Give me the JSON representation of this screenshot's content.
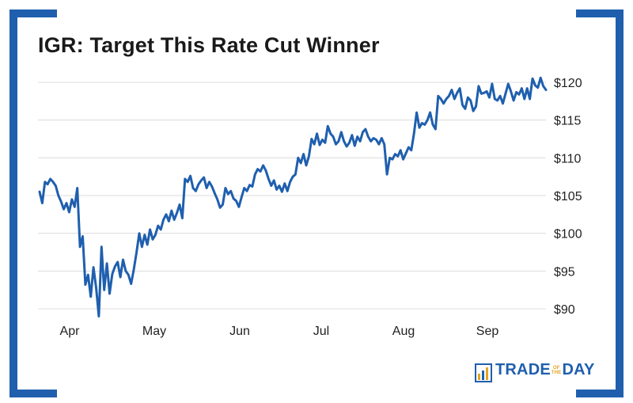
{
  "title": "IGR: Target This Rate Cut Winner",
  "brand": {
    "name_part1": "TRADE",
    "name_small_top": "OF",
    "name_small_bottom": "THE",
    "name_part2": "DAY",
    "accent_color": "#1f5fae",
    "gold_color": "#e3a326"
  },
  "chart_data": {
    "type": "line",
    "title": "IGR: Target This Rate Cut Winner",
    "xlabel": "",
    "ylabel": "",
    "ylim": [
      88,
      122
    ],
    "y_ticks": [
      120,
      115,
      110,
      105,
      100,
      95,
      90
    ],
    "y_tick_labels": [
      "$120",
      "$115",
      "$110",
      "$105",
      "$100",
      "$95",
      "$90"
    ],
    "x_tick_labels": [
      "Apr",
      "May",
      "Jun",
      "Jul",
      "Aug",
      "Sep"
    ],
    "x_tick_positions": [
      8,
      29,
      50,
      71,
      92,
      113
    ],
    "grid": true,
    "line_color": "#1f5fae",
    "series": [
      {
        "values": [
          105.5,
          104,
          106.8,
          106.5,
          107.2,
          106.8,
          106.3,
          105,
          104.2,
          103.2,
          104,
          102.8,
          104.5,
          103.5,
          106,
          98.2,
          99.6,
          93.2,
          94.5,
          91.6,
          95.5,
          92.8,
          89,
          98.2,
          92.5,
          96,
          92,
          94.6,
          95.6,
          96.2,
          94.2,
          96.5,
          95,
          94.5,
          93.3,
          95.2,
          97.5,
          100,
          98.2,
          99.8,
          98.5,
          100.5,
          99.2,
          99.8,
          101,
          100.5,
          101.8,
          102.5,
          101.6,
          103,
          101.8,
          102.7,
          103.8,
          102,
          107.2,
          106.8,
          107.6,
          106,
          105.6,
          106.5,
          107,
          107.4,
          106,
          106.8,
          106.2,
          105.3,
          104.5,
          103.4,
          103.8,
          106,
          105.2,
          105.6,
          104.6,
          104.3,
          103.5,
          104.8,
          106,
          105.6,
          106.4,
          106.2,
          107.8,
          108.5,
          108.2,
          109,
          108.3,
          107.2,
          106.3,
          107,
          105.8,
          106.3,
          105.5,
          106.6,
          105.6,
          106.8,
          107.5,
          107.8,
          110,
          109.3,
          110.5,
          109,
          110.2,
          112.5,
          111.8,
          113.2,
          111.7,
          112.4,
          112,
          114.2,
          113.2,
          112.8,
          111.8,
          112.2,
          113.4,
          112.2,
          111.5,
          112,
          113,
          111.6,
          112.8,
          112.2,
          113.4,
          113.8,
          112.8,
          112.2,
          112.6,
          112.4,
          111.8,
          112.6,
          111.8,
          107.8,
          110,
          109.8,
          110.5,
          110.2,
          111,
          109.8,
          110.6,
          111.4,
          111,
          113.2,
          116,
          114,
          114.6,
          114.4,
          115,
          116,
          114.4,
          113.8,
          118.2,
          117.8,
          117.2,
          117.8,
          118.2,
          119,
          117.8,
          118.6,
          119.2,
          117,
          116.5,
          118,
          117.6,
          116.2,
          116.8,
          119.5,
          118.5,
          118.6,
          118.8,
          118,
          119.8,
          117.8,
          117.6,
          118.2,
          117.2,
          118.5,
          119.8,
          118.8,
          117.6,
          118.7,
          118.4,
          119.2,
          117.8,
          119.2,
          117.8,
          120.5,
          119.6,
          119.3,
          120.6,
          119.5,
          119
        ]
      }
    ]
  }
}
